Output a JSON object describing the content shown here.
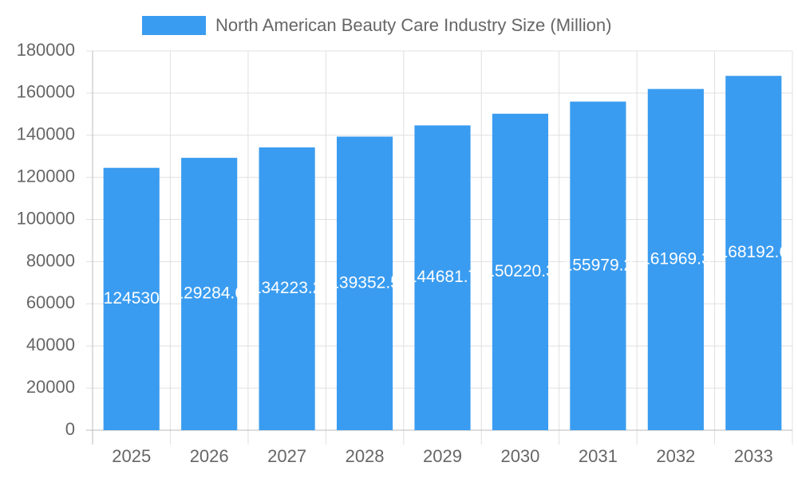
{
  "chart_data": {
    "type": "bar",
    "legend": "North American Beauty Care Industry Size (Million)",
    "categories": [
      "2025",
      "2026",
      "2027",
      "2028",
      "2029",
      "2030",
      "2031",
      "2032",
      "2033"
    ],
    "values": [
      124530,
      129284.6,
      134223.2,
      139352.5,
      144681.7,
      150220.3,
      155979.2,
      161969.3,
      168192.6
    ],
    "color": "#3a9cf0",
    "ylim": [
      0,
      180000
    ],
    "yticks": [
      0,
      20000,
      40000,
      60000,
      80000,
      100000,
      120000,
      140000,
      160000,
      180000
    ],
    "grid": true
  }
}
